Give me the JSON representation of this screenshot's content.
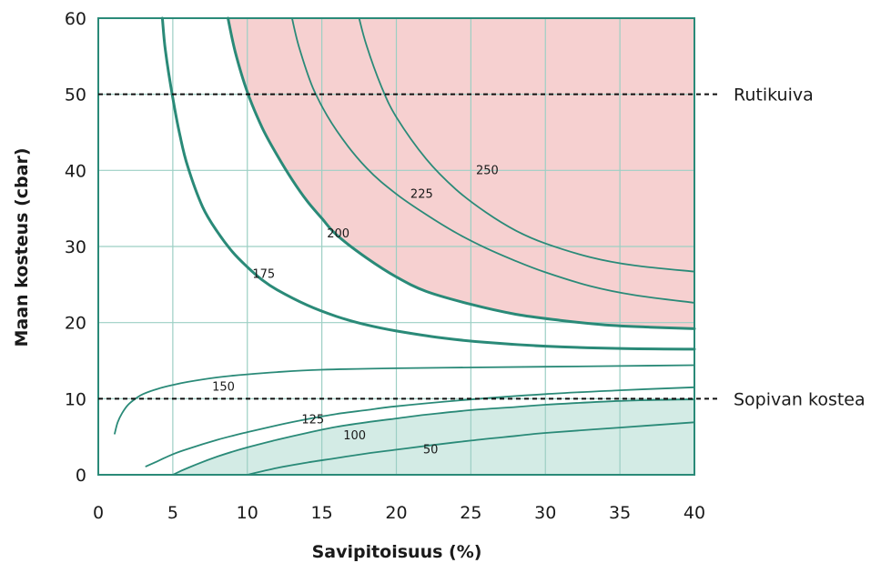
{
  "chart_data": {
    "type": "line",
    "xlabel": "Savipitoisuus (%)",
    "ylabel": "Maan kosteus (cbar)",
    "xlim": [
      0,
      40
    ],
    "ylim": [
      0,
      60
    ],
    "x_ticks": [
      "0",
      "5",
      "10",
      "15",
      "20",
      "25",
      "30",
      "35",
      "40"
    ],
    "y_ticks": [
      "0",
      "10",
      "20",
      "30",
      "40",
      "50",
      "60"
    ],
    "grid": true,
    "colors": {
      "curve": "#2a8a78",
      "grid": "#9ccfc4",
      "dry_region": "#f6d0d0",
      "moist_region": "#d3ebe5",
      "reference_line": "#111111"
    },
    "reference_lines": [
      {
        "y": 50,
        "label": "Rutikuiva"
      },
      {
        "y": 10,
        "label": "Sopivan kostea"
      }
    ],
    "regions": [
      {
        "name": "dry",
        "bounded_by": "200"
      },
      {
        "name": "moist",
        "bounded_by": "100"
      }
    ],
    "series": [
      {
        "name": "250",
        "bold": false,
        "x": [
          17.5,
          18,
          19,
          20,
          22,
          24,
          26,
          28,
          30,
          33,
          36,
          40
        ],
        "y": [
          60,
          56.4,
          51,
          47,
          41.5,
          37.5,
          34.5,
          32.1,
          30.4,
          28.6,
          27.5,
          26.7
        ]
      },
      {
        "name": "225",
        "bold": false,
        "x": [
          13,
          13.5,
          14.5,
          16,
          18,
          20,
          22,
          24,
          26,
          28,
          30,
          33,
          36,
          40
        ],
        "y": [
          60,
          56,
          50.4,
          45.2,
          40.3,
          36.9,
          34.2,
          31.8,
          29.8,
          28.1,
          26.6,
          24.8,
          23.6,
          22.6
        ]
      },
      {
        "name": "200",
        "bold": true,
        "x": [
          8.7,
          9.2,
          10,
          11,
          12,
          13,
          14,
          15,
          16,
          18,
          20,
          22,
          25,
          28,
          31,
          34,
          37,
          40
        ],
        "y": [
          60,
          55.5,
          50.3,
          45.6,
          42,
          38.8,
          36,
          33.7,
          31.5,
          28.5,
          26,
          24.1,
          22.4,
          21.1,
          20.3,
          19.7,
          19.4,
          19.2
        ]
      },
      {
        "name": "175",
        "bold": true,
        "x": [
          4.3,
          4.5,
          5,
          5.5,
          6,
          7,
          8,
          9,
          10,
          11,
          12,
          14,
          16,
          18,
          20,
          23,
          26,
          30,
          35,
          40
        ],
        "y": [
          60,
          55.8,
          49.5,
          44.4,
          40.5,
          35.2,
          31.9,
          29.3,
          27.3,
          25.6,
          24.3,
          22.3,
          20.8,
          19.7,
          18.9,
          18,
          17.4,
          16.9,
          16.6,
          16.5
        ]
      },
      {
        "name": "150",
        "bold": false,
        "x": [
          1.1,
          1.3,
          1.6,
          2,
          2.5,
          3,
          4,
          5,
          6,
          8,
          10,
          12,
          15,
          20,
          25,
          30,
          35,
          40
        ],
        "y": [
          5.4,
          6.9,
          8.1,
          9.2,
          10,
          10.6,
          11.3,
          11.8,
          12.2,
          12.8,
          13.2,
          13.5,
          13.8,
          14,
          14.1,
          14.2,
          14.3,
          14.4
        ]
      },
      {
        "name": "125",
        "bold": false,
        "x": [
          3.2,
          4,
          5,
          6,
          8,
          10,
          12,
          14,
          16,
          18,
          20,
          25,
          30,
          35,
          40
        ],
        "y": [
          1.1,
          1.8,
          2.7,
          3.4,
          4.6,
          5.6,
          6.5,
          7.3,
          8,
          8.5,
          9,
          9.9,
          10.6,
          11.1,
          11.5
        ]
      },
      {
        "name": "100",
        "bold": false,
        "x": [
          5,
          6,
          8,
          10,
          12,
          14,
          16,
          18,
          20,
          22,
          25,
          28,
          30,
          35,
          40
        ],
        "y": [
          0,
          0.9,
          2.4,
          3.6,
          4.6,
          5.5,
          6.3,
          6.9,
          7.4,
          7.9,
          8.5,
          8.9,
          9.2,
          9.7,
          9.9
        ]
      },
      {
        "name": "50",
        "bold": false,
        "x": [
          10,
          12,
          14,
          16,
          18,
          20,
          22,
          25,
          28,
          30,
          35,
          40
        ],
        "y": [
          0,
          0.9,
          1.6,
          2.2,
          2.8,
          3.3,
          3.8,
          4.5,
          5.1,
          5.5,
          6.2,
          6.9
        ]
      }
    ],
    "curve_labels": [
      {
        "text": "250",
        "x": 26.1,
        "y": 39.9
      },
      {
        "text": "225",
        "x": 21.7,
        "y": 36.8
      },
      {
        "text": "200",
        "x": 16.1,
        "y": 31.6
      },
      {
        "text": "175",
        "x": 11.1,
        "y": 26.3
      },
      {
        "text": "150",
        "x": 8.4,
        "y": 11.5
      },
      {
        "text": "125",
        "x": 14.4,
        "y": 7.2
      },
      {
        "text": "100",
        "x": 17.2,
        "y": 5.1
      },
      {
        "text": "50",
        "x": 22.3,
        "y": 3.2
      }
    ]
  }
}
